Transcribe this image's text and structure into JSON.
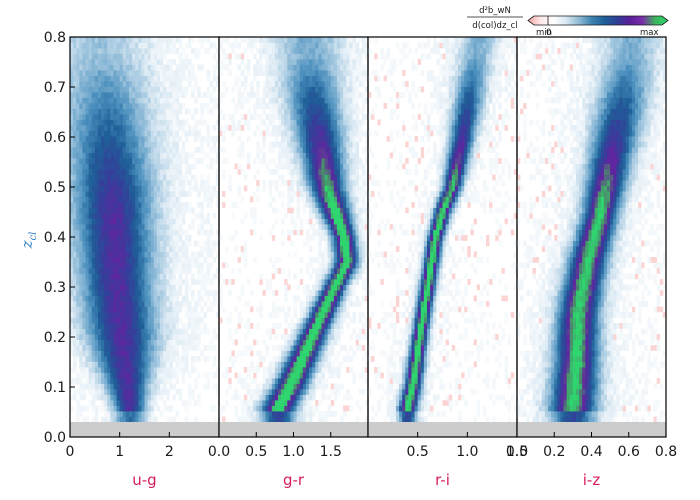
{
  "chart_data": {
    "type": "heatmap",
    "ylabel": {
      "main": "z",
      "sub": "cl"
    },
    "ylim": [
      0.0,
      0.8
    ],
    "yticks": [
      "0.0",
      "0.1",
      "0.2",
      "0.3",
      "0.4",
      "0.5",
      "0.6",
      "0.7",
      "0.8"
    ],
    "masked_below": 0.03,
    "panels": [
      {
        "xlabel": "u-g",
        "xlim": [
          0,
          3
        ],
        "xticks": [
          {
            "v": 0,
            "t": "0"
          },
          {
            "v": 1,
            "t": "1"
          },
          {
            "v": 2,
            "t": "2"
          }
        ],
        "ridge": [
          [
            0.06,
            1.2
          ],
          [
            0.2,
            1.05
          ],
          [
            0.3,
            0.95
          ],
          [
            0.4,
            0.9
          ],
          [
            0.5,
            0.85
          ],
          [
            0.65,
            0.75
          ],
          [
            0.8,
            0.6
          ]
        ],
        "width": [
          [
            0.06,
            0.2
          ],
          [
            0.2,
            0.45
          ],
          [
            0.4,
            0.5
          ],
          [
            0.6,
            0.55
          ],
          [
            0.8,
            0.6
          ]
        ],
        "peak": 0.7
      },
      {
        "xlabel": "g-r",
        "xlim": [
          0.0,
          2.0
        ],
        "xticks": [
          {
            "v": 0.0,
            "t": "0.0"
          },
          {
            "v": 0.5,
            "t": "0.5"
          },
          {
            "v": 1.0,
            "t": "1.0"
          },
          {
            "v": 1.5,
            "t": "1.5"
          }
        ],
        "ridge": [
          [
            0.06,
            0.8
          ],
          [
            0.1,
            0.95
          ],
          [
            0.2,
            1.25
          ],
          [
            0.3,
            1.55
          ],
          [
            0.35,
            1.72
          ],
          [
            0.4,
            1.68
          ],
          [
            0.5,
            1.45
          ],
          [
            0.6,
            1.35
          ],
          [
            0.7,
            1.25
          ],
          [
            0.8,
            1.2
          ]
        ],
        "width": [
          [
            0.06,
            0.15
          ],
          [
            0.2,
            0.12
          ],
          [
            0.3,
            0.1
          ],
          [
            0.4,
            0.1
          ],
          [
            0.6,
            0.2
          ],
          [
            0.8,
            0.3
          ]
        ],
        "peak": 1.0
      },
      {
        "xlabel": "r-i",
        "xlim": [
          0.0,
          1.5
        ],
        "xticks": [
          {
            "v": 0.5,
            "t": "0.5"
          },
          {
            "v": 1.0,
            "t": "1.0"
          },
          {
            "v": 1.5,
            "t": "1.5"
          }
        ],
        "ridge": [
          [
            0.06,
            0.4
          ],
          [
            0.1,
            0.45
          ],
          [
            0.2,
            0.52
          ],
          [
            0.3,
            0.6
          ],
          [
            0.4,
            0.68
          ],
          [
            0.45,
            0.75
          ],
          [
            0.5,
            0.85
          ],
          [
            0.6,
            0.95
          ],
          [
            0.8,
            1.12
          ]
        ],
        "width": [
          [
            0.06,
            0.06
          ],
          [
            0.2,
            0.05
          ],
          [
            0.4,
            0.05
          ],
          [
            0.5,
            0.06
          ],
          [
            0.8,
            0.12
          ]
        ],
        "peak": 1.0
      },
      {
        "xlabel": "i-z",
        "xlim": [
          0.0,
          0.8
        ],
        "xticks": [
          {
            "v": 0.0,
            "t": "0.0"
          },
          {
            "v": 0.2,
            "t": "0.2"
          },
          {
            "v": 0.4,
            "t": "0.4"
          },
          {
            "v": 0.6,
            "t": "0.6"
          },
          {
            "v": 0.8,
            "t": "0.8"
          }
        ],
        "ridge": [
          [
            0.06,
            0.3
          ],
          [
            0.15,
            0.32
          ],
          [
            0.25,
            0.33
          ],
          [
            0.35,
            0.38
          ],
          [
            0.45,
            0.45
          ],
          [
            0.55,
            0.5
          ],
          [
            0.7,
            0.58
          ],
          [
            0.8,
            0.62
          ]
        ],
        "width": [
          [
            0.06,
            0.08
          ],
          [
            0.25,
            0.07
          ],
          [
            0.45,
            0.06
          ],
          [
            0.6,
            0.08
          ],
          [
            0.8,
            0.1
          ]
        ],
        "peak": 0.95
      }
    ],
    "colorbar": {
      "label_top": "d²b_wN",
      "label_bottom": "d(col)dz_cl",
      "min_label": "min",
      "zero_label": "0",
      "max_label": "max",
      "colors": [
        "#f4a6a6",
        "#fde8e8",
        "#ffffff",
        "#d7e8f2",
        "#8fbad4",
        "#3e83b2",
        "#1f5f98",
        "#2f3f96",
        "#5a1f9a",
        "#7a2ea8",
        "#3cb65a",
        "#2fd66f"
      ]
    },
    "colors": {
      "xlabel": "#d81b60",
      "ylabel": "#2f7fc1",
      "mask": "#cccccc"
    }
  }
}
